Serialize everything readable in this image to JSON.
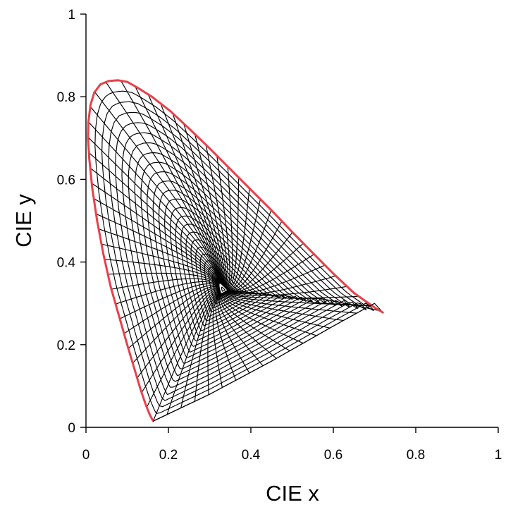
{
  "chart_data": {
    "type": "line",
    "title": "",
    "xlabel": "CIE x",
    "ylabel": "CIE y",
    "xlim": [
      0,
      1
    ],
    "ylim": [
      0,
      1
    ],
    "x_ticks": [
      0,
      0.2,
      0.4,
      0.6,
      0.8,
      1
    ],
    "y_ticks": [
      0,
      0.2,
      0.4,
      0.6,
      0.8,
      1
    ],
    "x_tick_labels": [
      "0",
      "0.2",
      "0.4",
      "0.6",
      "0.8",
      "1"
    ],
    "y_tick_labels": [
      "0",
      "0.2",
      "0.4",
      "0.6",
      "0.8",
      "1"
    ],
    "grid": false,
    "legend": "none",
    "colors": {
      "spectral_locus": "#e8404a",
      "mesh": "#000000",
      "axes": "#000000"
    },
    "white_point": [
      0.333,
      0.333
    ],
    "series": [
      {
        "role": "spectral-locus",
        "x": [
          0.163,
          0.155,
          0.145,
          0.133,
          0.118,
          0.1,
          0.08,
          0.06,
          0.042,
          0.027,
          0.015,
          0.008,
          0.005,
          0.006,
          0.011,
          0.02,
          0.035,
          0.055,
          0.078,
          0.1,
          0.125,
          0.16,
          0.205,
          0.25,
          0.3,
          0.35,
          0.4,
          0.45,
          0.5,
          0.55,
          0.6,
          0.65,
          0.7,
          0.72
        ],
        "y": [
          0.015,
          0.03,
          0.055,
          0.09,
          0.14,
          0.2,
          0.27,
          0.34,
          0.42,
          0.5,
          0.58,
          0.65,
          0.7,
          0.74,
          0.78,
          0.81,
          0.83,
          0.838,
          0.84,
          0.836,
          0.822,
          0.8,
          0.765,
          0.723,
          0.675,
          0.625,
          0.575,
          0.525,
          0.473,
          0.422,
          0.372,
          0.325,
          0.29,
          0.278
        ]
      },
      {
        "role": "line-of-purples",
        "x": [
          0.163,
          0.3,
          0.45,
          0.6,
          0.7
        ],
        "y": [
          0.015,
          0.08,
          0.16,
          0.245,
          0.3
        ]
      }
    ]
  }
}
